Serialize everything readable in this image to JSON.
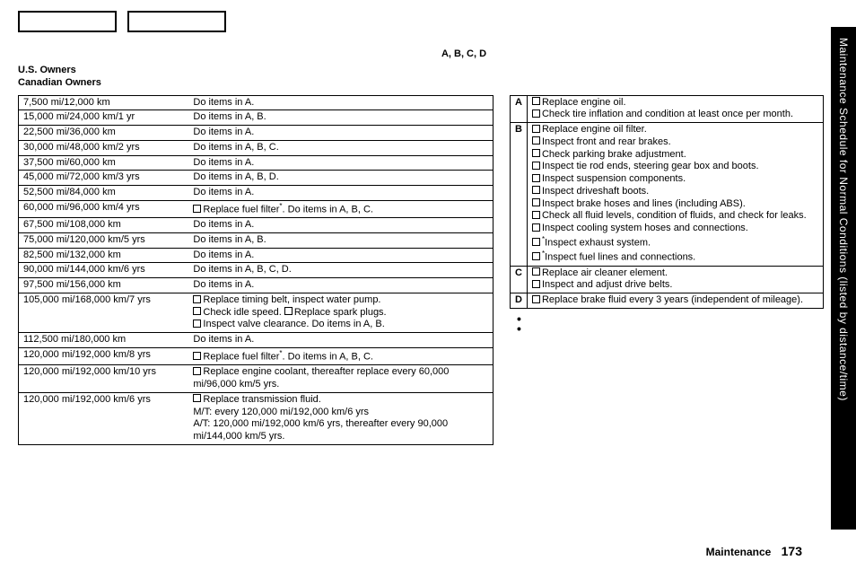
{
  "header": {
    "abcd": "A, B, C, D",
    "us": "U.S. Owners",
    "ca": "Canadian Owners"
  },
  "schedule": [
    {
      "dist": "7,500 mi/12,000 km",
      "actions": [
        "Do items in A."
      ]
    },
    {
      "dist": "15,000 mi/24,000 km/1 yr",
      "actions": [
        "Do items in A, B."
      ]
    },
    {
      "dist": "22,500 mi/36,000 km",
      "actions": [
        "Do items in A."
      ]
    },
    {
      "dist": "30,000 mi/48,000 km/2 yrs",
      "actions": [
        "Do items in A, B, C."
      ]
    },
    {
      "dist": "37,500 mi/60,000 km",
      "actions": [
        "Do items in A."
      ]
    },
    {
      "dist": "45,000 mi/72,000 km/3 yrs",
      "actions": [
        "Do items in A, B, D."
      ]
    },
    {
      "dist": "52,500 mi/84,000 km",
      "actions": [
        "Do items in A."
      ]
    },
    {
      "dist": "60,000 mi/96,000 km/4 yrs",
      "actions": [
        "☐Replace fuel filter*. Do items in A, B, C."
      ]
    },
    {
      "dist": "67,500 mi/108,000 km",
      "actions": [
        "Do items in A."
      ]
    },
    {
      "dist": "75,000 mi/120,000 km/5 yrs",
      "actions": [
        "Do items in A, B."
      ]
    },
    {
      "dist": "82,500 mi/132,000 km",
      "actions": [
        "Do items in A."
      ]
    },
    {
      "dist": "90,000 mi/144,000 km/6 yrs",
      "actions": [
        "Do items in A, B, C, D."
      ]
    },
    {
      "dist": "97,500 mi/156,000 km",
      "actions": [
        "Do items in A."
      ]
    },
    {
      "dist": "105,000 mi/168,000 km/7 yrs",
      "actions": [
        "☐Replace timing belt, inspect water pump.",
        "☐Check idle speed. ☐Replace spark plugs.",
        "☐Inspect valve clearance. Do items in A, B."
      ]
    },
    {
      "dist": "112,500 mi/180,000 km",
      "actions": [
        "Do items in A."
      ]
    },
    {
      "dist": "120,000 mi/192,000 km/8 yrs",
      "actions": [
        "☐Replace fuel filter*. Do items in A, B, C."
      ]
    },
    {
      "dist": "120,000 mi/192,000 km/10 yrs",
      "actions": [
        "☐Replace engine coolant, thereafter replace every 60,000 mi/96,000 km/5 yrs."
      ]
    },
    {
      "dist": "120,000 mi/192,000 km/6 yrs",
      "actions": [
        "☐Replace transmission fluid.",
        "M/T: every 120,000 mi/192,000 km/6 yrs",
        "A/T: 120,000 mi/192,000 km/6 yrs, thereafter every 90,000 mi/144,000 km/5 yrs."
      ]
    }
  ],
  "groups": [
    {
      "letter": "A",
      "items": [
        "☐Replace engine oil.",
        "☐Check tire inflation and condition at least once per month."
      ]
    },
    {
      "letter": "B",
      "items": [
        "☐Replace engine oil filter.",
        "☐Inspect front and rear brakes.",
        "☐Check parking brake adjustment.",
        "☐Inspect tie rod ends, steering gear box and boots.",
        "☐Inspect suspension components.",
        "☐Inspect driveshaft boots.",
        "☐Inspect brake hoses and lines (including ABS).",
        "☐Check all fluid levels, condition of fluids, and check for leaks.",
        "☐Inspect cooling system hoses and connections.",
        "☐*Inspect exhaust system.",
        "☐*Inspect fuel lines and connections."
      ]
    },
    {
      "letter": "C",
      "items": [
        "☐Replace air cleaner element.",
        "☐Inspect and adjust drive belts."
      ]
    },
    {
      "letter": "D",
      "items": [
        "☐Replace brake fluid every 3 years (independent of mileage)."
      ]
    }
  ],
  "sideTab": "Maintenance Schedule for Normal Conditions (listed by distance/time)",
  "footer": {
    "label": "Maintenance",
    "page": "173"
  }
}
